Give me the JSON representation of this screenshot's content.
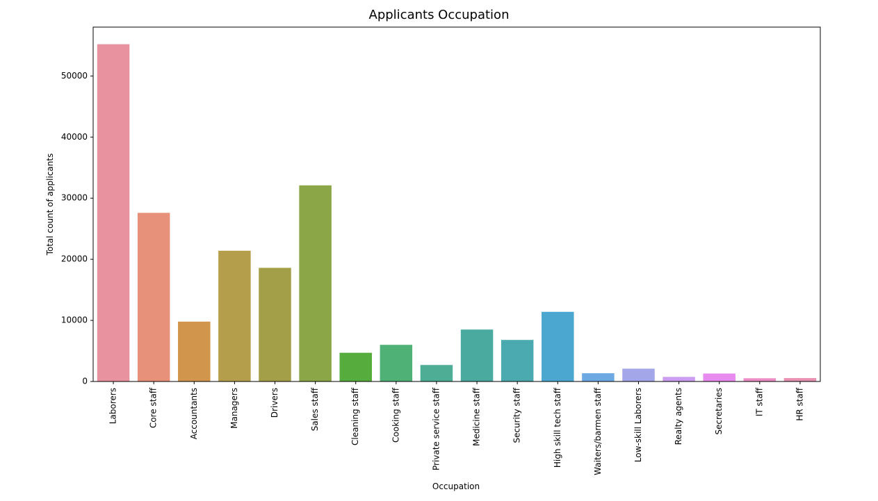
{
  "chart_data": {
    "type": "bar",
    "title": "Applicants Occupation",
    "xlabel": "Occupation",
    "ylabel": "Total count of applicants",
    "ylim": [
      0,
      58000
    ],
    "yticks": [
      0,
      10000,
      20000,
      30000,
      40000,
      50000
    ],
    "ytick_labels": [
      "0",
      "10000",
      "20000",
      "30000",
      "40000",
      "50000"
    ],
    "grid": false,
    "categories": [
      "Laborers",
      "Core staff",
      "Accountants",
      "Managers",
      "Drivers",
      "Sales staff",
      "Cleaning staff",
      "Cooking staff",
      "Private service staff",
      "Medicine staff",
      "Security staff",
      "High skill tech staff",
      "Waiters/barmen staff",
      "Low-skill Laborers",
      "Realty agents",
      "Secretaries",
      "IT staff",
      "HR staff"
    ],
    "values": [
      55200,
      27600,
      9800,
      21400,
      18600,
      32100,
      4700,
      6000,
      2700,
      8500,
      6800,
      11400,
      1350,
      2100,
      750,
      1300,
      530,
      560
    ],
    "colors": [
      "#e8929f",
      "#e8917a",
      "#d1964b",
      "#b49d4b",
      "#a39f48",
      "#8aa646",
      "#56ad3d",
      "#50b177",
      "#4eae95",
      "#4aaa9f",
      "#4ba9b0",
      "#4ba7cf",
      "#6daae4",
      "#a3a6e8",
      "#cb9df0",
      "#e88bef",
      "#ec8ec5",
      "#e991b0"
    ]
  }
}
